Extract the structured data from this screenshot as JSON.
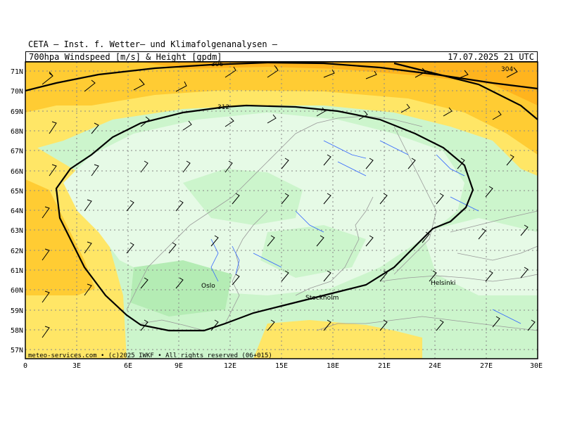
{
  "header": {
    "organization": "CETA — Inst. f. Wetter— und Klimafolgenanalysen —",
    "product": "700hpa_Windspeed_[m/s]_&_Height_[gpdm]",
    "valid_time": "17.07.2025 21 UTC"
  },
  "map": {
    "region": "Scandinavia",
    "lat_labels": [
      "71N",
      "70N",
      "69N",
      "68N",
      "67N",
      "66N",
      "65N",
      "64N",
      "63N",
      "62N",
      "61N",
      "60N",
      "59N",
      "58N",
      "57N"
    ],
    "lon_labels": [
      "0",
      "3E",
      "6E",
      "9E",
      "12E",
      "15E",
      "18E",
      "21E",
      "24E",
      "27E",
      "30E"
    ],
    "contour_labels": [
      "306",
      "304",
      "312"
    ],
    "cities": [
      "Oslo",
      "Stockholm",
      "Helsinki"
    ],
    "credit": "meteo-services.com • (c)2025 IWKF • All rights reserved (06+015)",
    "colors": {
      "very_light_green": "#e6fae6",
      "light_green": "#ccf5cc",
      "pale_green": "#b4ecb4",
      "yellow": "#ffe666",
      "orange_yellow": "#ffcc33",
      "orange": "#ffb41e",
      "coast": "#999999",
      "rivers": "#3366ff",
      "contour": "#000000"
    }
  }
}
